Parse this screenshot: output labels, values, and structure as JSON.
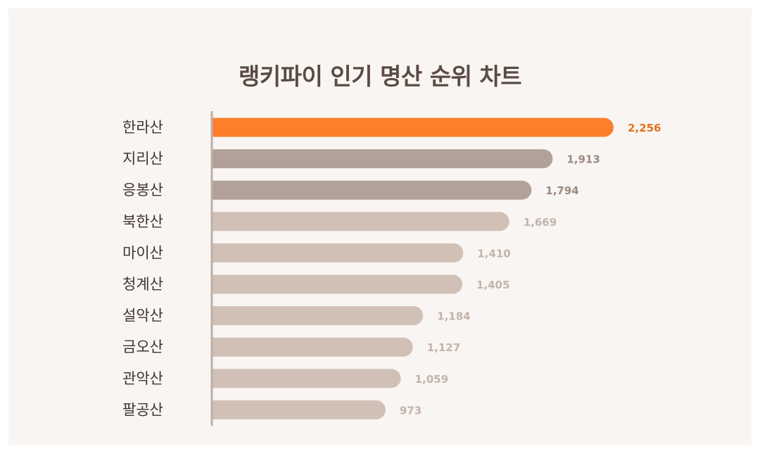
{
  "chart_data": {
    "type": "bar",
    "orientation": "horizontal",
    "title": "랭키파이 인기 명산 순위 차트",
    "categories": [
      "한라산",
      "지리산",
      "응봉산",
      "북한산",
      "마이산",
      "청계산",
      "설악산",
      "금오산",
      "관악산",
      "팔공산"
    ],
    "values": [
      2256,
      1913,
      1794,
      1669,
      1410,
      1405,
      1184,
      1127,
      1059,
      973
    ],
    "value_labels": [
      "2,256",
      "1,913",
      "1,794",
      "1,669",
      "1,410",
      "1,405",
      "1,184",
      "1,127",
      "1,059",
      "973"
    ],
    "xlim": [
      0,
      2256
    ],
    "grid": false,
    "legend": "none",
    "colors": {
      "top1": "#fd7f2c",
      "top2_3": "#b2a198",
      "rest": "#d0c0b6",
      "top1_label": "#e3731e",
      "top2_3_label": "#9c8a80",
      "rest_label": "#c3b3aa",
      "axis": "#c0aea4"
    }
  }
}
